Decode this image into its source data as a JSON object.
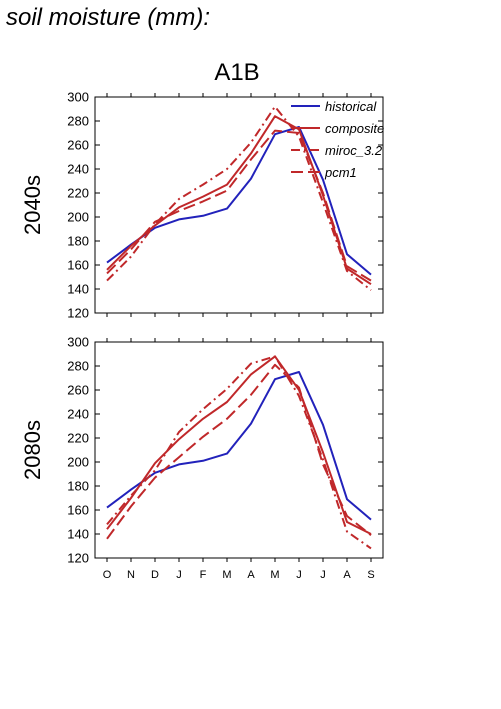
{
  "page_title": "soil moisture (mm):",
  "scenario_title": "A1B",
  "months": [
    "O",
    "N",
    "D",
    "J",
    "F",
    "M",
    "A",
    "M",
    "J",
    "J",
    "A",
    "S"
  ],
  "yticks": [
    120,
    140,
    160,
    180,
    200,
    220,
    240,
    260,
    280,
    300
  ],
  "colors": {
    "historical": "#2222bb",
    "model": "#c0282a",
    "axis": "#000000"
  },
  "legend": [
    {
      "name": "historical",
      "style": "solid",
      "color": "#2222bb"
    },
    {
      "name": "composite",
      "style": "solid",
      "color": "#c0282a"
    },
    {
      "name": "miroc_3.2",
      "style": "dashdot",
      "color": "#c0282a"
    },
    {
      "name": "pcm1",
      "style": "dash",
      "color": "#c0282a"
    }
  ],
  "chart_data": [
    {
      "type": "line",
      "row_label": "2040s",
      "ylim": [
        120,
        300
      ],
      "x": [
        "O",
        "N",
        "D",
        "J",
        "F",
        "M",
        "A",
        "M",
        "J",
        "J",
        "A",
        "S"
      ],
      "series": [
        {
          "name": "historical",
          "style": "solid",
          "values": [
            162,
            177,
            191,
            198,
            201,
            207,
            232,
            269,
            275,
            231,
            169,
            152
          ]
        },
        {
          "name": "composite",
          "style": "solid",
          "values": [
            156,
            176,
            193,
            208,
            217,
            227,
            253,
            284,
            273,
            218,
            157,
            144
          ]
        },
        {
          "name": "miroc_3.2",
          "style": "dashdot",
          "values": [
            147,
            167,
            194,
            215,
            227,
            240,
            262,
            292,
            267,
            212,
            155,
            139
          ]
        },
        {
          "name": "pcm1",
          "style": "dash",
          "values": [
            153,
            173,
            196,
            205,
            213,
            222,
            248,
            272,
            270,
            220,
            159,
            147
          ]
        }
      ]
    },
    {
      "type": "line",
      "row_label": "2080s",
      "ylim": [
        120,
        300
      ],
      "x": [
        "O",
        "N",
        "D",
        "J",
        "F",
        "M",
        "A",
        "M",
        "J",
        "J",
        "A",
        "S"
      ],
      "series": [
        {
          "name": "historical",
          "style": "solid",
          "values": [
            162,
            177,
            191,
            198,
            201,
            207,
            232,
            269,
            275,
            231,
            169,
            152
          ]
        },
        {
          "name": "composite",
          "style": "solid",
          "values": [
            144,
            170,
            199,
            219,
            236,
            250,
            273,
            288,
            260,
            208,
            150,
            140
          ]
        },
        {
          "name": "miroc_3.2",
          "style": "dashdot",
          "values": [
            148,
            172,
            193,
            225,
            244,
            261,
            282,
            288,
            255,
            202,
            142,
            128
          ]
        },
        {
          "name": "pcm1",
          "style": "dash",
          "values": [
            136,
            163,
            187,
            204,
            221,
            236,
            256,
            281,
            262,
            198,
            155,
            139
          ]
        }
      ]
    }
  ]
}
